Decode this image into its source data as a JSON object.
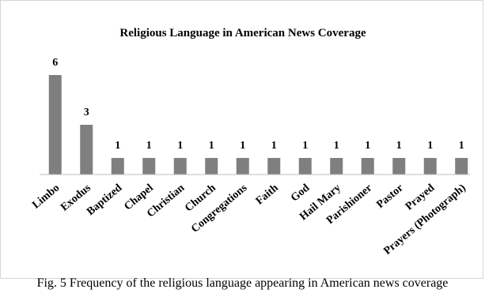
{
  "chart_data": {
    "type": "bar",
    "title": "Religious Language in American News Coverage",
    "categories": [
      "Limbo",
      "Exodus",
      "Baptized",
      "Chapel",
      "Christian",
      "Church",
      "Congregations",
      "Faith",
      "God",
      "Hail Mary",
      "Parishioner",
      "Pastor",
      "Prayed",
      "Prayers (Photograph)"
    ],
    "values": [
      6,
      3,
      1,
      1,
      1,
      1,
      1,
      1,
      1,
      1,
      1,
      1,
      1,
      1
    ],
    "xlabel": "",
    "ylabel": "",
    "ylim": [
      0,
      6
    ],
    "grid": false,
    "legend": "none",
    "bar_color": "#7f7f7f"
  },
  "caption": "Fig. 5 Frequency of the religious language appearing in American news coverage"
}
